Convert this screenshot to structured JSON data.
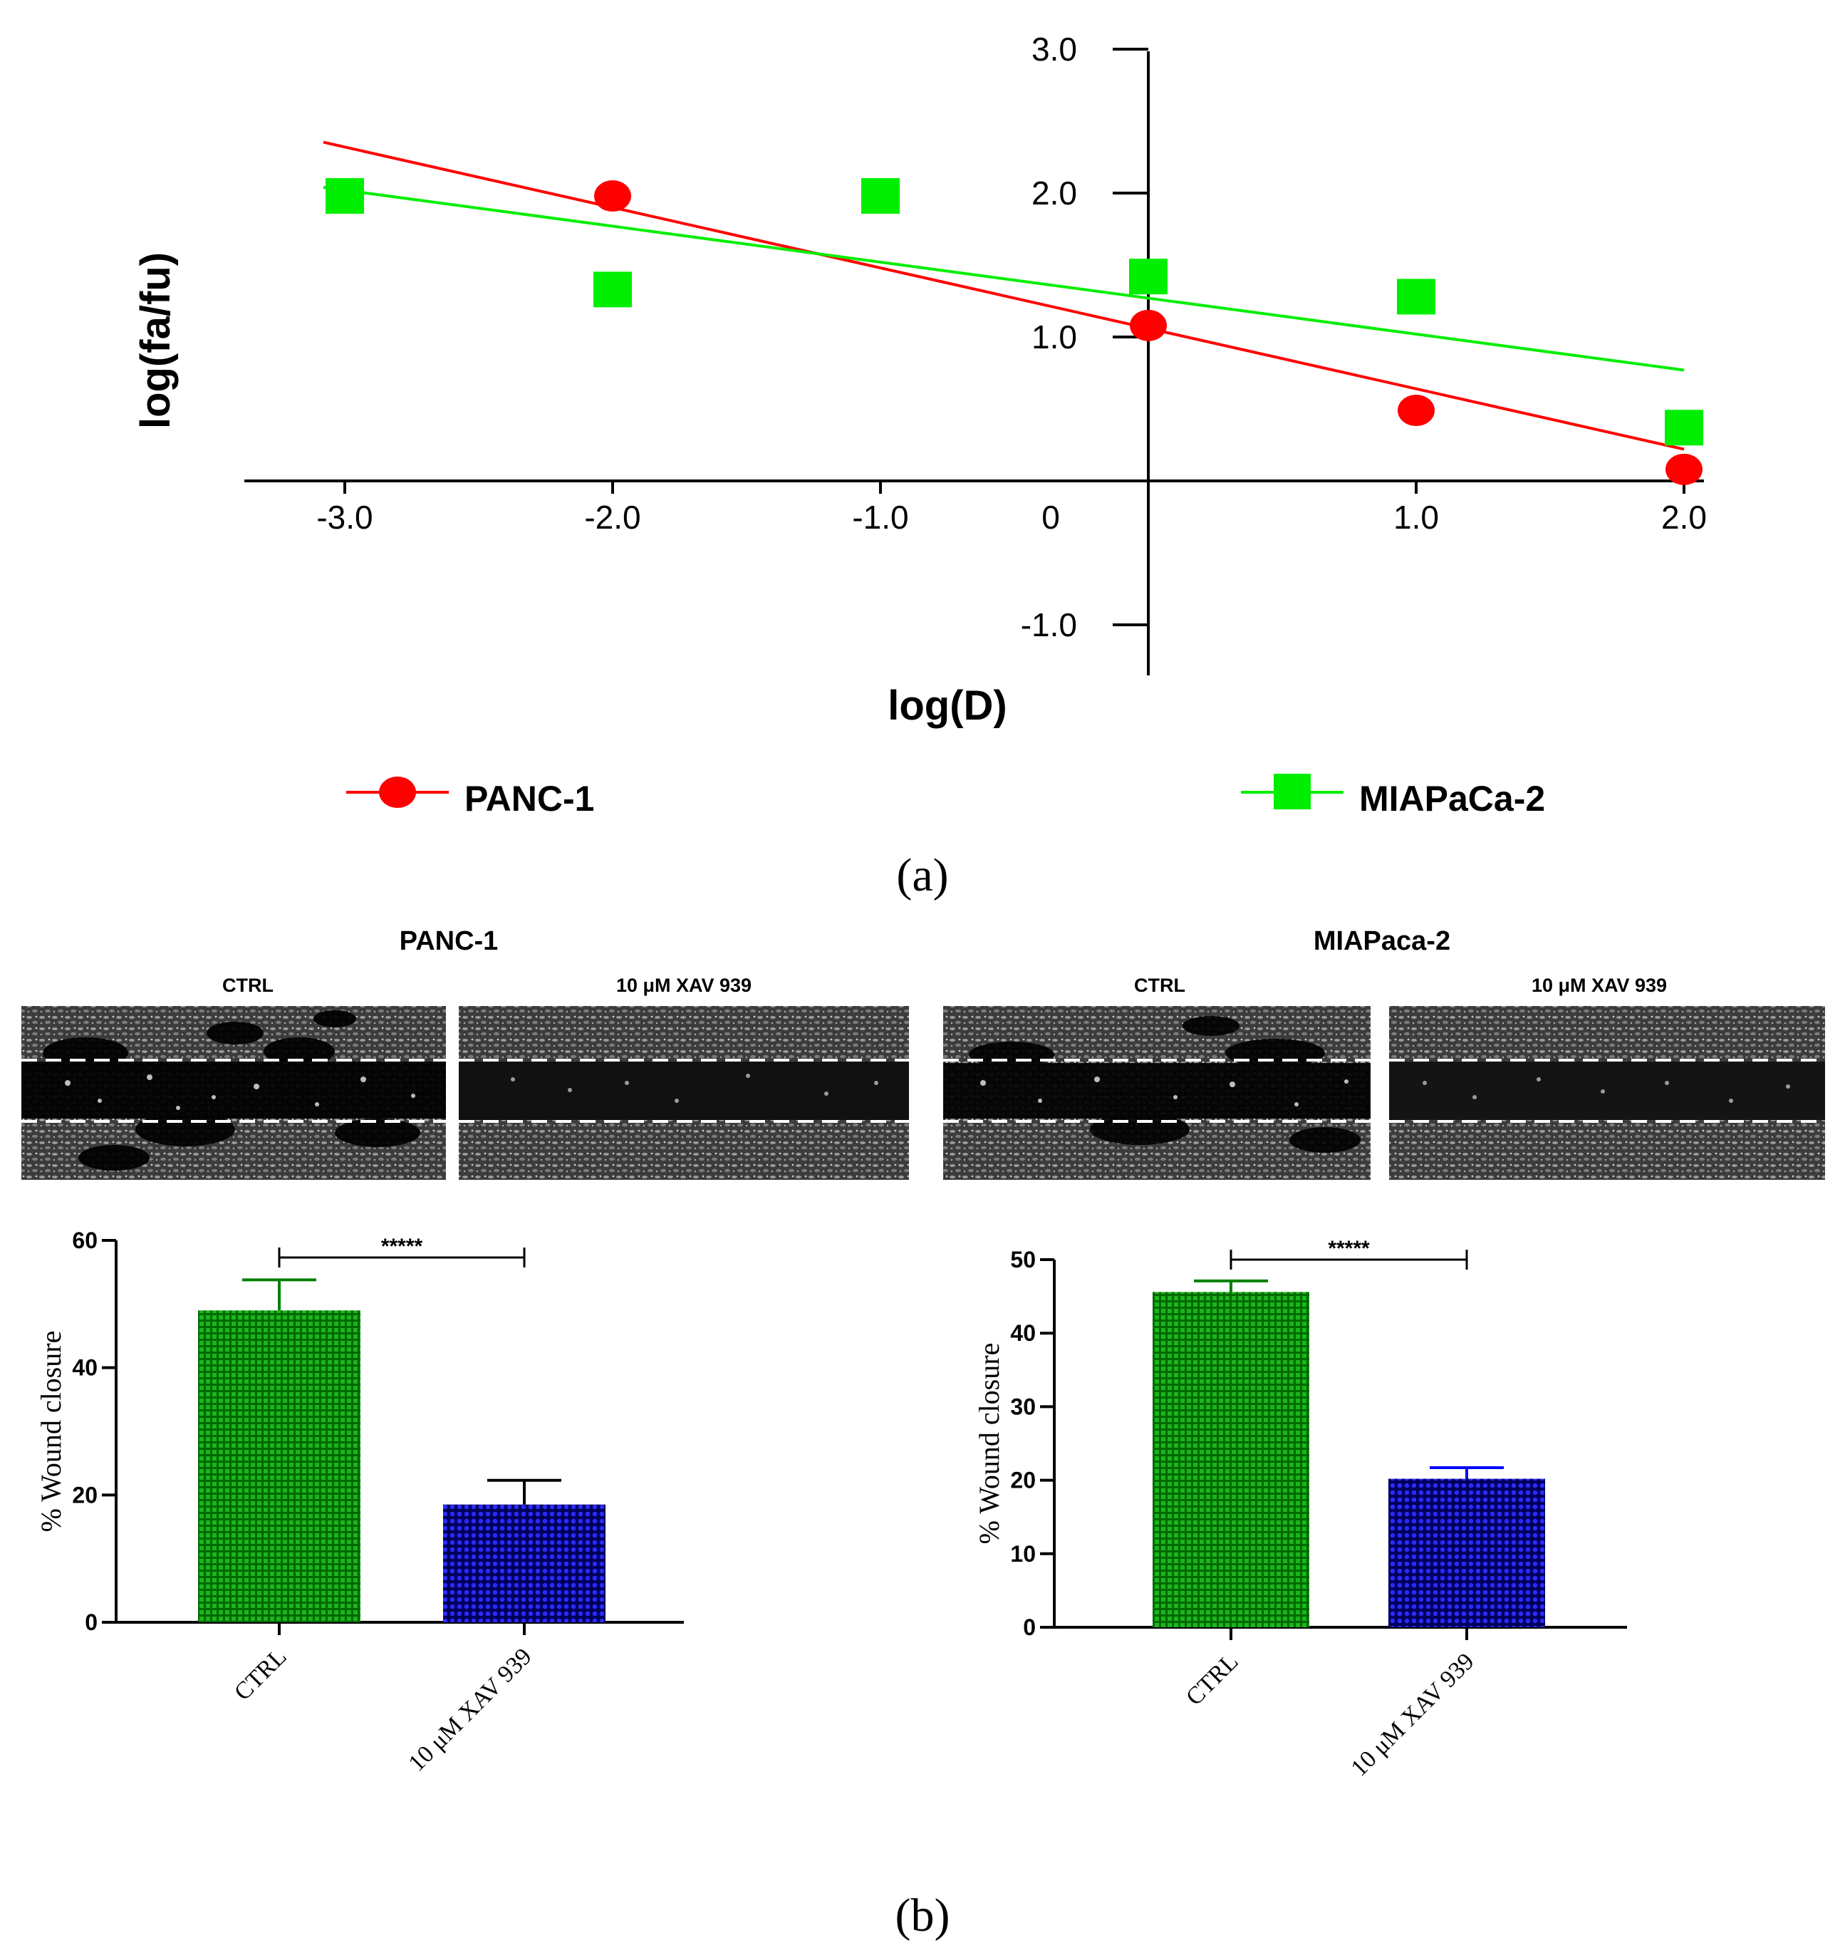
{
  "panel_a": {
    "label": "(a)",
    "chart_data": {
      "type": "scatter",
      "xlabel": "log(D)",
      "ylabel": "log(fa/fu)",
      "xlim": [
        -3.4,
        2.3
      ],
      "ylim": [
        -1.35,
        3.0
      ],
      "x_ticks": [
        "-3.0",
        "-2.0",
        "-1.0",
        "0",
        "1.0",
        "2.0"
      ],
      "y_ticks": [
        "3.0",
        "2.0",
        "1.0",
        "-1.0"
      ],
      "series": [
        {
          "name": "PANC-1",
          "color": "#ff0000",
          "marker": "circle",
          "points": [
            [
              -2.0,
              1.98
            ],
            [
              0.0,
              1.08
            ],
            [
              1.0,
              0.49
            ],
            [
              2.0,
              0.08
            ]
          ],
          "fit": [
            [
              -3.0,
              2.32
            ],
            [
              2.0,
              0.22
            ]
          ]
        },
        {
          "name": "MIAPaCa-2",
          "color": "#00ee00",
          "marker": "square",
          "points": [
            [
              -3.0,
              1.98
            ],
            [
              -2.0,
              1.33
            ],
            [
              -1.0,
              1.98
            ],
            [
              0.0,
              1.42
            ],
            [
              1.0,
              1.28
            ],
            [
              2.0,
              0.37
            ]
          ],
          "fit": [
            [
              -3.0,
              2.02
            ],
            [
              2.0,
              0.77
            ]
          ]
        }
      ]
    }
  },
  "panel_b": {
    "label": "(b)",
    "stars": "*****",
    "groups": [
      {
        "title": "PANC-1",
        "image_labels": [
          "CTRL",
          "10 μM XAV 939"
        ],
        "chart_data": {
          "type": "bar",
          "categories": [
            "CTRL",
            "10 μM XAV 939"
          ],
          "values": [
            49,
            18.5
          ],
          "errors": [
            4.8,
            3.8
          ],
          "ylabel": "% Wound closure",
          "ylim": [
            0,
            60
          ],
          "y_ticks": [
            "0",
            "20",
            "40",
            "60"
          ],
          "colors": [
            "#008000",
            "#0000cc"
          ],
          "error_colors": [
            "#008000",
            "#000000"
          ],
          "significance": "*****"
        }
      },
      {
        "title": "MIAPaca-2",
        "image_labels": [
          "CTRL",
          "10 μM XAV 939"
        ],
        "chart_data": {
          "type": "bar",
          "categories": [
            "CTRL",
            "10 μM XAV 939"
          ],
          "values": [
            45.6,
            20.2
          ],
          "errors": [
            1.5,
            1.5
          ],
          "ylabel": "% Wound closure",
          "ylim": [
            0,
            50
          ],
          "y_ticks": [
            "0",
            "10",
            "20",
            "30",
            "40",
            "50"
          ],
          "colors": [
            "#008000",
            "#0000cc"
          ],
          "error_colors": [
            "#008000",
            "#0000ff"
          ],
          "significance": "*****"
        }
      }
    ]
  }
}
